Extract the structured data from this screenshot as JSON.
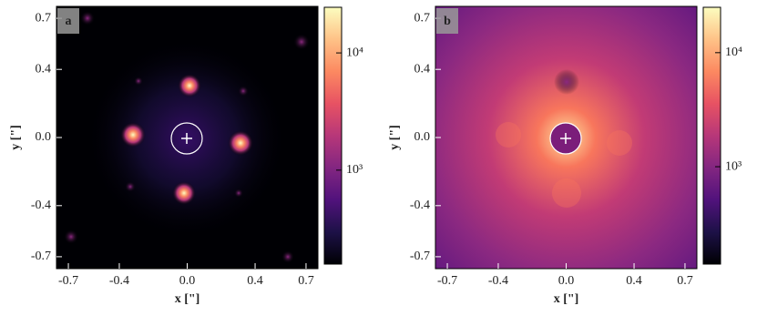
{
  "chart_data": [
    {
      "type": "image",
      "panel_label": "a",
      "xlabel": "x [\"]",
      "ylabel": "y [\"]",
      "xlim": [
        -0.77,
        0.77
      ],
      "ylim": [
        -0.77,
        0.77
      ],
      "xticks": [
        -0.7,
        -0.4,
        {
          "value": 0,
          "label": "0.0"
        },
        0.4,
        0.7
      ],
      "yticks": [
        -0.7,
        -0.4,
        {
          "value": 0,
          "label": "0.0"
        },
        0.4,
        0.7
      ],
      "colormap": "magma",
      "colorbar_log": true,
      "clim": [
        158,
        24500
      ],
      "cticks": [
        {
          "value": 1000,
          "label": "10³"
        },
        {
          "value": 10000,
          "label": "10⁴"
        }
      ]
    },
    {
      "type": "image",
      "panel_label": "b",
      "xlabel": "x [\"]",
      "ylabel": "y [\"]",
      "xlim": [
        -0.77,
        0.77
      ],
      "ylim": [
        -0.77,
        0.77
      ],
      "xticks": [
        -0.7,
        -0.4,
        {
          "value": 0,
          "label": "0.0"
        },
        0.4,
        0.7
      ],
      "yticks": [
        -0.7,
        -0.4,
        {
          "value": 0,
          "label": "0.0"
        },
        0.4,
        0.7
      ],
      "colormap": "magma",
      "colorbar_log": true,
      "clim": [
        140,
        25000
      ],
      "cticks": [
        {
          "value": 1000,
          "label": "10³"
        },
        {
          "value": 10000,
          "label": "10⁴"
        }
      ]
    }
  ]
}
